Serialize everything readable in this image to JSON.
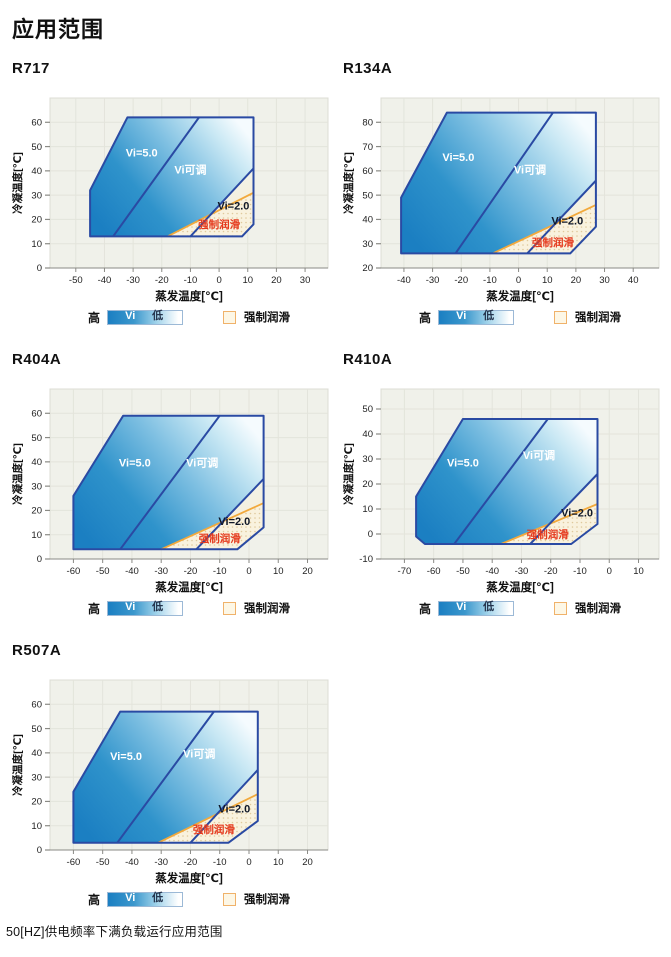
{
  "page": {
    "title": "应用范围",
    "footnote": "50[HZ]供电频率下满负载运行应用范围"
  },
  "legend": {
    "high": "高",
    "vi": "Vi",
    "low": "低",
    "forced_lube": "强制润滑"
  },
  "colors": {
    "fill_dark_blue": "#1b7fc2",
    "fill_light": "#f5fbfe",
    "border_navy": "#2a4aa3",
    "orange_line": "#f2a93c",
    "red_text": "#e5391d",
    "plot_bg": "#f0f1ea",
    "grid": "#e3e4db",
    "cream": "#f7edd2",
    "lube_fill": "#f9f2de",
    "lube_dots": "#dfc99c",
    "axis_text": "#222222",
    "tick_line": "#8a8a85"
  },
  "chart_data": [
    {
      "type": "area",
      "refrigerant": "R717",
      "xlabel": "蒸发温度[℃]",
      "ylabel": "冷凝温度[℃]",
      "xlim": [
        -59,
        38
      ],
      "ylim": [
        0,
        70
      ],
      "x_ticks": [
        -50,
        -40,
        -30,
        -20,
        -10,
        0,
        10,
        20,
        30
      ],
      "y_ticks": [
        0,
        10,
        20,
        30,
        40,
        50,
        60
      ],
      "envelope": [
        [
          -45,
          13
        ],
        [
          -45,
          32
        ],
        [
          -32,
          62
        ],
        [
          12,
          62
        ],
        [
          12,
          18
        ],
        [
          8,
          13
        ]
      ],
      "vi5_boundary": [
        [
          -37,
          13
        ],
        [
          -7,
          62
        ]
      ],
      "vi2_boundary": [
        [
          -10,
          13
        ],
        [
          12,
          41
        ]
      ],
      "vi2_region": [
        [
          -10,
          13
        ],
        [
          12,
          41
        ],
        [
          12,
          18
        ],
        [
          8,
          13
        ]
      ],
      "forced_lube_line": [
        [
          -18,
          13
        ],
        [
          12,
          31
        ]
      ],
      "forced_lube_region": [
        [
          -18,
          13
        ],
        [
          12,
          31
        ],
        [
          12,
          18
        ],
        [
          8,
          13
        ]
      ],
      "labels": [
        {
          "text": "Vi=5.0",
          "x": -27,
          "y": 46,
          "style": "white"
        },
        {
          "text": "Vi可调",
          "x": -10,
          "y": 39,
          "style": "white"
        },
        {
          "text": "Vi=2.0",
          "x": 5,
          "y": 24,
          "style": "dark"
        },
        {
          "text": "强制润滑",
          "x": 0,
          "y": 16.5,
          "style": "red"
        }
      ]
    },
    {
      "type": "area",
      "refrigerant": "R134A",
      "xlabel": "蒸发温度[℃]",
      "ylabel": "冷凝温度[℃]",
      "xlim": [
        -48,
        49
      ],
      "ylim": [
        20,
        90
      ],
      "x_ticks": [
        -40,
        -30,
        -20,
        -10,
        0,
        10,
        20,
        30,
        40
      ],
      "y_ticks": [
        20,
        30,
        40,
        50,
        60,
        70,
        80
      ],
      "envelope": [
        [
          -41,
          26
        ],
        [
          -41,
          49
        ],
        [
          -25,
          84
        ],
        [
          27,
          84
        ],
        [
          27,
          37
        ],
        [
          18,
          26
        ]
      ],
      "vi5_boundary": [
        [
          -22,
          26
        ],
        [
          12,
          84
        ]
      ],
      "vi2_boundary": [
        [
          3,
          26
        ],
        [
          27,
          56
        ]
      ],
      "vi2_region": [
        [
          3,
          26
        ],
        [
          27,
          56
        ],
        [
          27,
          37
        ],
        [
          18,
          26
        ]
      ],
      "forced_lube_line": [
        [
          -9,
          26
        ],
        [
          27,
          46
        ]
      ],
      "forced_lube_region": [
        [
          -9,
          26
        ],
        [
          27,
          46
        ],
        [
          27,
          37
        ],
        [
          18,
          26
        ]
      ],
      "labels": [
        {
          "text": "Vi=5.0",
          "x": -21,
          "y": 64,
          "style": "white"
        },
        {
          "text": "Vi可调",
          "x": 4,
          "y": 59,
          "style": "white"
        },
        {
          "text": "Vi=2.0",
          "x": 17,
          "y": 38,
          "style": "dark"
        },
        {
          "text": "强制润滑",
          "x": 12,
          "y": 29,
          "style": "red"
        }
      ]
    },
    {
      "type": "area",
      "refrigerant": "R404A",
      "xlabel": "蒸发温度[℃]",
      "ylabel": "冷凝温度[℃]",
      "xlim": [
        -68,
        27
      ],
      "ylim": [
        0,
        70
      ],
      "x_ticks": [
        -60,
        -50,
        -40,
        -30,
        -20,
        -10,
        0,
        10,
        20
      ],
      "y_ticks": [
        0,
        10,
        20,
        30,
        40,
        50,
        60
      ],
      "envelope": [
        [
          -60,
          4
        ],
        [
          -60,
          26
        ],
        [
          -43,
          59
        ],
        [
          5,
          59
        ],
        [
          5,
          13
        ],
        [
          -4,
          4
        ]
      ],
      "vi5_boundary": [
        [
          -44,
          4
        ],
        [
          -10,
          59
        ]
      ],
      "vi2_boundary": [
        [
          -18,
          4
        ],
        [
          5,
          33
        ]
      ],
      "vi2_region": [
        [
          -18,
          4
        ],
        [
          5,
          33
        ],
        [
          5,
          13
        ],
        [
          -4,
          4
        ]
      ],
      "forced_lube_line": [
        [
          -30,
          4
        ],
        [
          5,
          23
        ]
      ],
      "forced_lube_region": [
        [
          -30,
          4
        ],
        [
          5,
          23
        ],
        [
          5,
          13
        ],
        [
          -4,
          4
        ]
      ],
      "labels": [
        {
          "text": "Vi=5.0",
          "x": -39,
          "y": 38,
          "style": "white"
        },
        {
          "text": "Vi可调",
          "x": -16,
          "y": 38,
          "style": "white"
        },
        {
          "text": "Vi=2.0",
          "x": -5,
          "y": 14,
          "style": "dark"
        },
        {
          "text": "强制润滑",
          "x": -10,
          "y": 7,
          "style": "red"
        }
      ]
    },
    {
      "type": "area",
      "refrigerant": "R410A",
      "xlabel": "蒸发温度[℃]",
      "ylabel": "冷凝温度[℃]",
      "xlim": [
        -78,
        17
      ],
      "ylim": [
        -10,
        58
      ],
      "x_ticks": [
        -70,
        -60,
        -50,
        -40,
        -30,
        -20,
        -10,
        0,
        10
      ],
      "y_ticks": [
        -10,
        0,
        10,
        20,
        30,
        40,
        50
      ],
      "envelope": [
        [
          -63,
          -4
        ],
        [
          -66,
          -1
        ],
        [
          -66,
          15
        ],
        [
          -50,
          46
        ],
        [
          -4,
          46
        ],
        [
          -4,
          4
        ],
        [
          -13,
          -4
        ]
      ],
      "vi5_boundary": [
        [
          -53,
          -4
        ],
        [
          -21,
          46
        ]
      ],
      "vi2_boundary": [
        [
          -27,
          -4
        ],
        [
          -4,
          24
        ]
      ],
      "vi2_region": [
        [
          -27,
          -4
        ],
        [
          -4,
          24
        ],
        [
          -4,
          4
        ],
        [
          -13,
          -4
        ]
      ],
      "forced_lube_line": [
        [
          -37,
          -4
        ],
        [
          -4,
          12
        ]
      ],
      "forced_lube_region": [
        [
          -37,
          -4
        ],
        [
          -4,
          12
        ],
        [
          -4,
          4
        ],
        [
          -13,
          -4
        ]
      ],
      "labels": [
        {
          "text": "Vi=5.0",
          "x": -50,
          "y": 27,
          "style": "white"
        },
        {
          "text": "Vi可调",
          "x": -24,
          "y": 30,
          "style": "white"
        },
        {
          "text": "Vi=2.0",
          "x": -11,
          "y": 7,
          "style": "dark"
        },
        {
          "text": "强制润滑",
          "x": -21,
          "y": -1.5,
          "style": "red"
        }
      ]
    },
    {
      "type": "area",
      "refrigerant": "R507A",
      "xlabel": "蒸发温度[℃]",
      "ylabel": "冷凝温度[℃]",
      "xlim": [
        -68,
        27
      ],
      "ylim": [
        0,
        70
      ],
      "x_ticks": [
        -60,
        -50,
        -40,
        -30,
        -20,
        -10,
        0,
        10,
        20
      ],
      "y_ticks": [
        0,
        10,
        20,
        30,
        40,
        50,
        60
      ],
      "envelope": [
        [
          -60,
          3
        ],
        [
          -60,
          24
        ],
        [
          -44,
          57
        ],
        [
          3,
          57
        ],
        [
          3,
          12
        ],
        [
          -7,
          3
        ]
      ],
      "vi5_boundary": [
        [
          -45,
          3
        ],
        [
          -12,
          57
        ]
      ],
      "vi2_boundary": [
        [
          -20,
          3
        ],
        [
          3,
          33
        ]
      ],
      "vi2_region": [
        [
          -20,
          3
        ],
        [
          3,
          33
        ],
        [
          3,
          12
        ],
        [
          -7,
          3
        ]
      ],
      "forced_lube_line": [
        [
          -31,
          3
        ],
        [
          3,
          23
        ]
      ],
      "forced_lube_region": [
        [
          -31,
          3
        ],
        [
          3,
          23
        ],
        [
          3,
          12
        ],
        [
          -7,
          3
        ]
      ],
      "labels": [
        {
          "text": "Vi=5.0",
          "x": -42,
          "y": 37,
          "style": "white"
        },
        {
          "text": "Vi可调",
          "x": -17,
          "y": 38,
          "style": "white"
        },
        {
          "text": "Vi=2.0",
          "x": -5,
          "y": 15.5,
          "style": "dark"
        },
        {
          "text": "强制润滑",
          "x": -12,
          "y": 7,
          "style": "red"
        }
      ]
    }
  ]
}
